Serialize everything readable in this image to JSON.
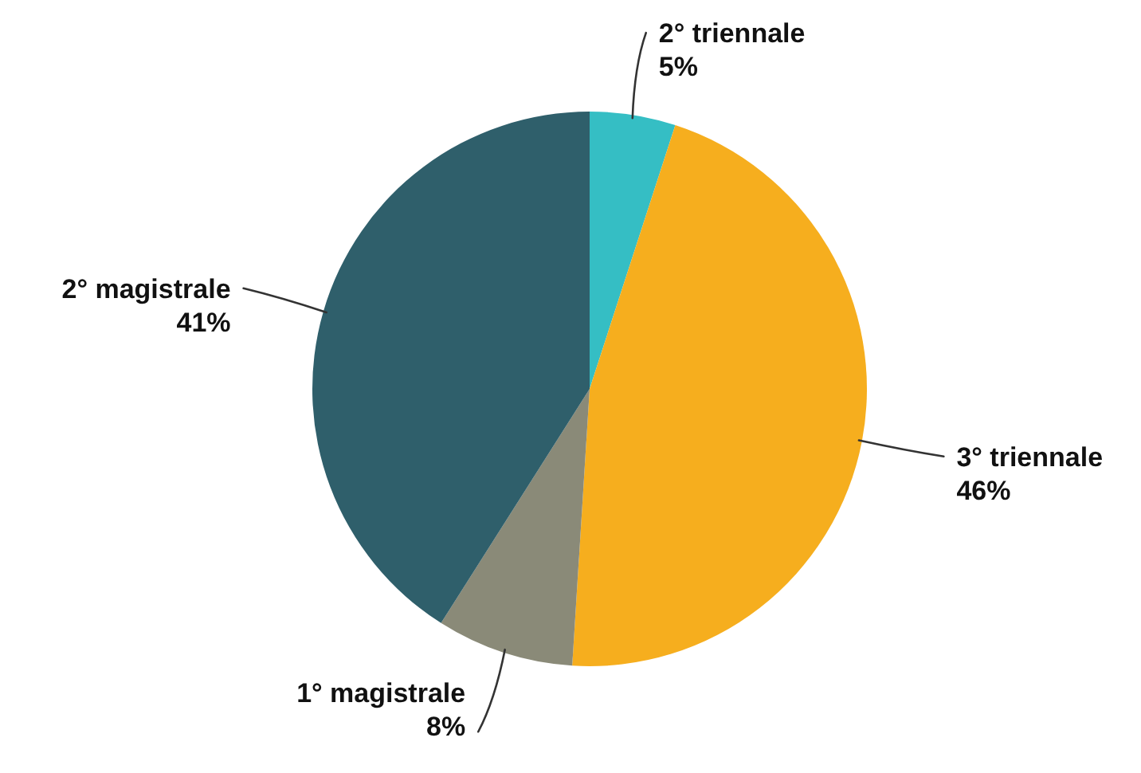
{
  "chart_data": {
    "type": "pie",
    "categories": [
      "2° triennale",
      "3° triennale",
      "1° magistrale",
      "2° magistrale"
    ],
    "values": [
      5,
      46,
      8,
      41
    ],
    "colors": [
      "#35bec4",
      "#f6ae1e",
      "#8a8a78",
      "#2f5f6b"
    ],
    "value_labels": [
      "5%",
      "46%",
      "8%",
      "41%"
    ],
    "legend": false
  }
}
